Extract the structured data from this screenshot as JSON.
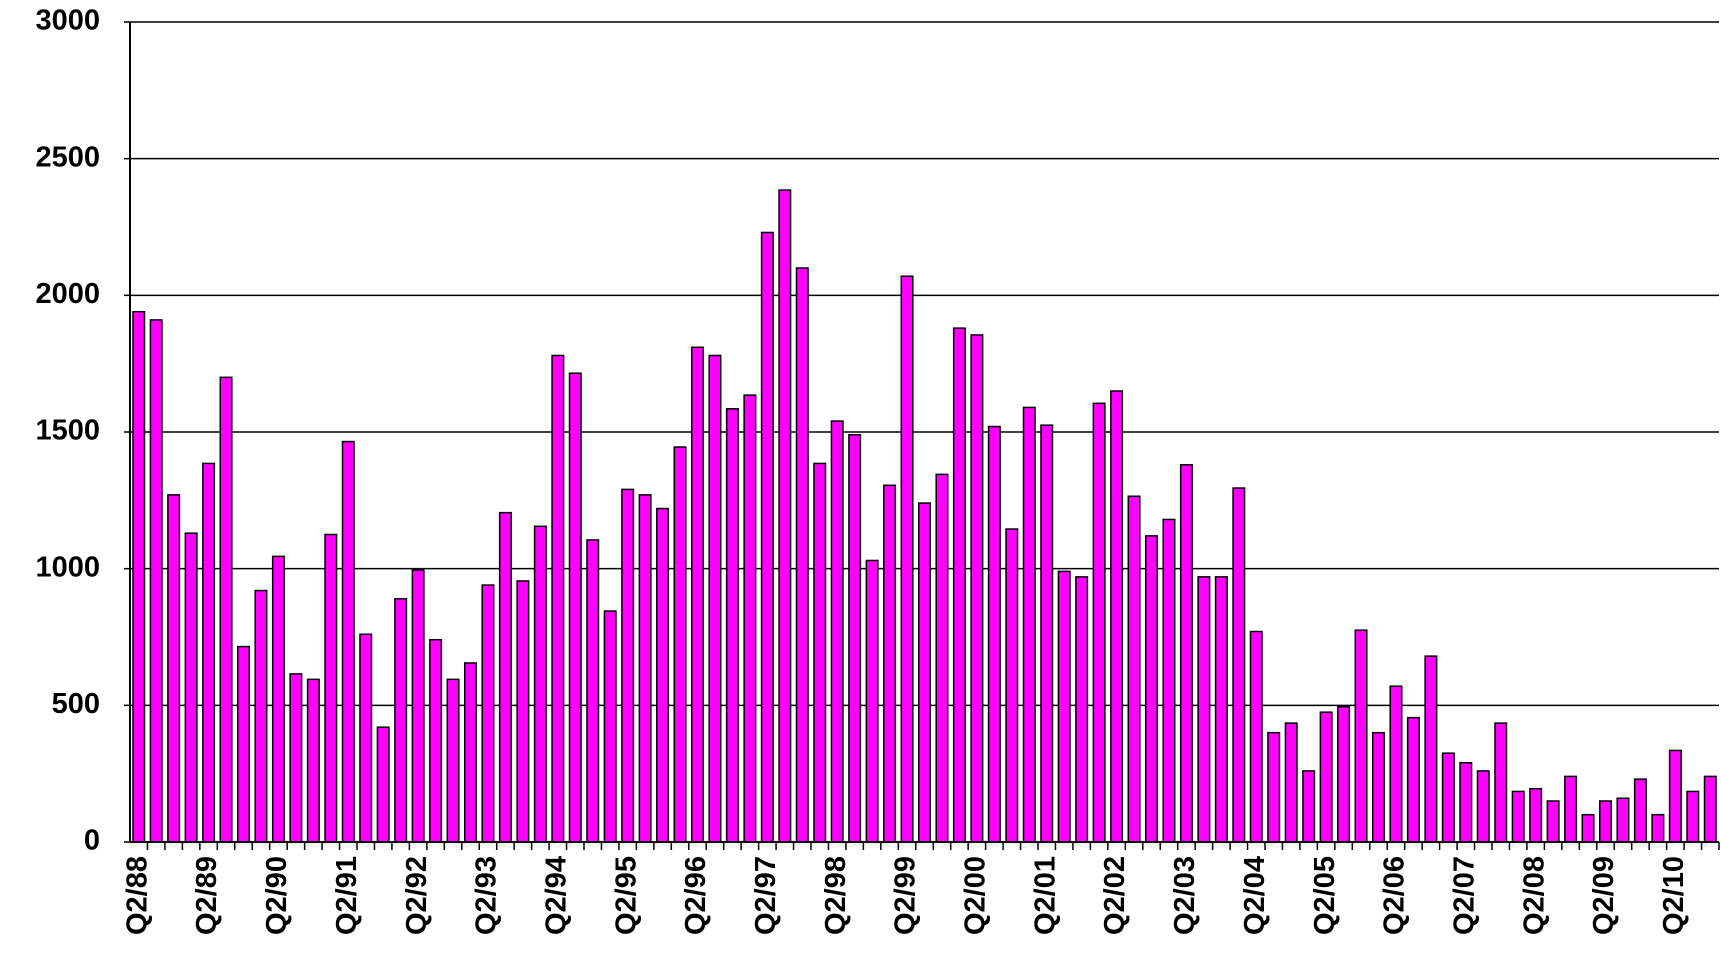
{
  "chart_data": {
    "type": "bar",
    "categories": [
      "Q2/88",
      null,
      null,
      null,
      "Q2/89",
      null,
      null,
      null,
      "Q2/90",
      null,
      null,
      null,
      "Q2/91",
      null,
      null,
      null,
      "Q2/92",
      null,
      null,
      null,
      "Q2/93",
      null,
      null,
      null,
      "Q2/94",
      null,
      null,
      null,
      "Q2/95",
      null,
      null,
      null,
      "Q2/96",
      null,
      null,
      null,
      "Q2/97",
      null,
      null,
      null,
      "Q2/98",
      null,
      null,
      null,
      "Q2/99",
      null,
      null,
      null,
      "Q2/00",
      null,
      null,
      null,
      "Q2/01",
      null,
      null,
      null,
      "Q2/02",
      null,
      null,
      null,
      "Q2/03",
      null,
      null,
      null,
      "Q2/04",
      null,
      null,
      null,
      "Q2/05",
      null,
      null,
      null,
      "Q2/06",
      null,
      null,
      null,
      "Q2/07",
      null,
      null,
      null,
      "Q2/08",
      null,
      null,
      null,
      "Q2/09",
      null,
      null,
      null,
      "Q2/10",
      null,
      null
    ],
    "values": [
      1940,
      1910,
      1270,
      1130,
      1385,
      1700,
      715,
      920,
      1045,
      615,
      595,
      1125,
      1465,
      760,
      420,
      890,
      995,
      740,
      595,
      655,
      940,
      1205,
      955,
      1155,
      1780,
      1715,
      1105,
      845,
      1290,
      1270,
      1220,
      1445,
      1810,
      1780,
      1585,
      1635,
      2230,
      2385,
      2100,
      1385,
      1540,
      1490,
      1030,
      1305,
      2070,
      1240,
      1345,
      1880,
      1855,
      1520,
      1145,
      1590,
      1525,
      990,
      970,
      1605,
      1650,
      1265,
      1120,
      1180,
      1380,
      970,
      970,
      1295,
      770,
      400,
      435,
      260,
      475,
      495,
      775,
      400,
      570,
      455,
      680,
      325,
      290,
      260,
      435,
      185,
      195,
      150,
      240,
      100,
      150,
      160,
      230,
      100,
      335,
      185,
      240
    ],
    "color": "#ff00ff",
    "ylim": [
      0,
      3000
    ],
    "yticks": [
      0,
      500,
      1000,
      1500,
      2000,
      2500,
      3000
    ],
    "grid": true
  }
}
